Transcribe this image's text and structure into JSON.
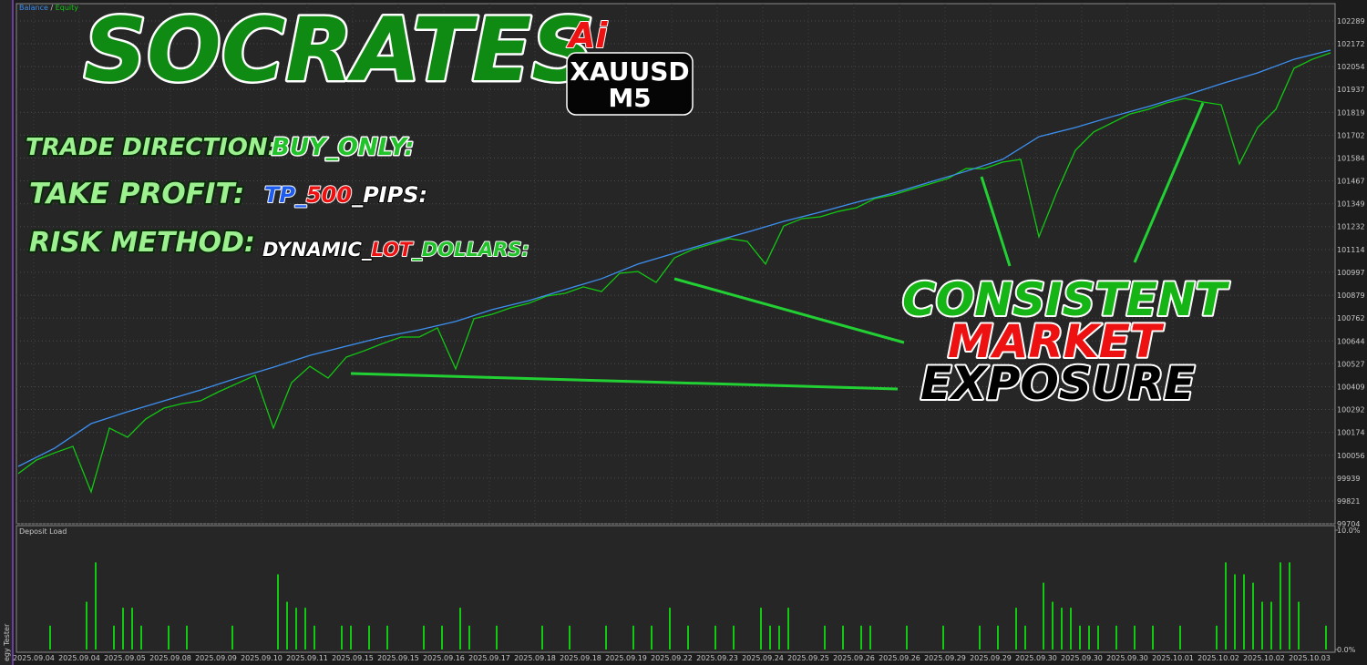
{
  "chart_data": [
    {
      "type": "line",
      "legend_separator": "/",
      "series": [
        {
          "name": "Balance",
          "color": "#3d8ff0",
          "values": [
            99999,
            100093,
            100219,
            100280,
            100336,
            100392,
            100453,
            100509,
            100570,
            100617,
            100664,
            100701,
            100744,
            100805,
            100851,
            100908,
            100964,
            101039,
            101095,
            101151,
            101203,
            101259,
            101306,
            101357,
            101404,
            101460,
            101516,
            101577,
            101694,
            101741,
            101797,
            101849,
            101905,
            101966,
            102022,
            102092,
            102139
          ]
        },
        {
          "name": "Equity",
          "color": "#12c812",
          "values": [
            99962,
            100032,
            100069,
            100102,
            99868,
            100196,
            100149,
            100243,
            100299,
            100322,
            100336,
            100383,
            100425,
            100467,
            100196,
            100430,
            100514,
            100453,
            100561,
            100594,
            100631,
            100664,
            100664,
            100711,
            100500,
            100758,
            100781,
            100814,
            100837,
            100875,
            100889,
            100922,
            100898,
            100992,
            101001,
            100945,
            101071,
            101114,
            101142,
            101170,
            101156,
            101039,
            101235,
            101273,
            101282,
            101310,
            101329,
            101376,
            101395,
            101423,
            101451,
            101479,
            101530,
            101530,
            101563,
            101577,
            101179,
            101413,
            101624,
            101718,
            101765,
            101811,
            101835,
            101868,
            101891,
            101872,
            101858,
            101554,
            101741,
            101835,
            102046,
            102092,
            102125
          ]
        }
      ],
      "ylim": [
        99704,
        102289
      ],
      "yticks": [
        102289,
        102172,
        102054,
        101937,
        101819,
        101702,
        101584,
        101467,
        101349,
        101232,
        101114,
        100997,
        100879,
        100762,
        100644,
        100527,
        100409,
        100292,
        100174,
        100056,
        99939,
        99821,
        99704
      ],
      "grid": true
    },
    {
      "type": "bar",
      "title": "Deposit Load",
      "color": "#12c812",
      "values": [
        null,
        null,
        null,
        2,
        null,
        null,
        null,
        4,
        7.3,
        null,
        2,
        3.5,
        3.5,
        2,
        null,
        null,
        2,
        null,
        2,
        null,
        null,
        null,
        null,
        2,
        null,
        null,
        null,
        null,
        6.3,
        4,
        3.5,
        3.5,
        2,
        null,
        null,
        2,
        2,
        null,
        2,
        null,
        2,
        null,
        null,
        null,
        2,
        null,
        2,
        null,
        3.5,
        2,
        null,
        null,
        2,
        null,
        null,
        null,
        null,
        2,
        null,
        null,
        2,
        null,
        null,
        null,
        2,
        null,
        null,
        2,
        null,
        2,
        null,
        3.5,
        null,
        2,
        null,
        null,
        2,
        null,
        2,
        null,
        null,
        3.5,
        2,
        2,
        3.5,
        null,
        null,
        null,
        2,
        null,
        2,
        null,
        2,
        2,
        null,
        null,
        null,
        2,
        null,
        null,
        null,
        2,
        null,
        null,
        null,
        2,
        null,
        2,
        null,
        3.5,
        2,
        null,
        5.6,
        4,
        3.5,
        3.5,
        2,
        2,
        2,
        null,
        2,
        null,
        2,
        null,
        2,
        null,
        null,
        2,
        null,
        null,
        null,
        2,
        7.3,
        6.3,
        6.3,
        5.6,
        4,
        4,
        7.3,
        7.3,
        4,
        null,
        null,
        2
      ],
      "ylim": [
        0,
        10
      ],
      "yticks": [
        {
          "value": 10,
          "label": "10.0%"
        },
        {
          "value": 0,
          "label": "0.0%"
        }
      ],
      "x_tick_labels": [
        "2025.09.04",
        "2025.09.04",
        "2025.09.05",
        "2025.09.08",
        "2025.09.09",
        "2025.09.10",
        "2025.09.11",
        "2025.09.15",
        "2025.09.15",
        "2025.09.16",
        "2025.09.17",
        "2025.09.18",
        "2025.09.18",
        "2025.09.19",
        "2025.09.22",
        "2025.09.23",
        "2025.09.24",
        "2025.09.25",
        "2025.09.26",
        "2025.09.26",
        "2025.09.29",
        "2025.09.29",
        "2025.09.30",
        "2025.09.30",
        "2025.09.30",
        "2025.10.01",
        "2025.10.02",
        "2025.10.02",
        "2025.10.03"
      ]
    }
  ],
  "overlay": {
    "brand": "SOCRATES",
    "brand_suffix": "Ai",
    "symbol": "XAUUSD",
    "timeframe": "M5",
    "trade_direction": {
      "label": "TRADE DIRECTION:",
      "value": "BUY_ONLY:"
    },
    "take_profit": {
      "label": "TAKE PROFIT:",
      "value_parts": [
        "TP_",
        "500",
        "_PIPS:"
      ]
    },
    "risk_method": {
      "label": "RISK METHOD:",
      "value_parts": [
        "DYNAMIC_",
        "LOT",
        "_DOLLARS:"
      ]
    },
    "callout": [
      "CONSISTENT",
      "MARKET",
      "EXPOSURE"
    ]
  },
  "side_tab": "egy Tester"
}
